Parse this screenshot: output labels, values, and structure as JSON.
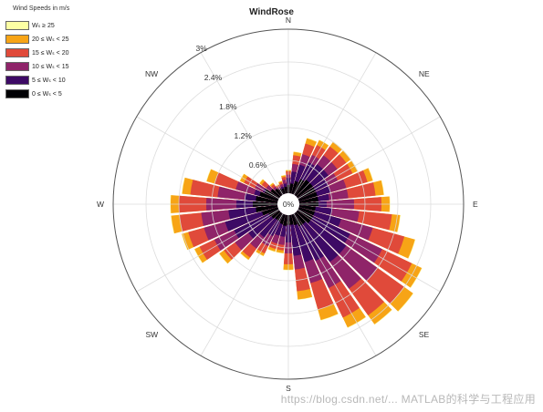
{
  "legend_title": "Wind Speeds in m/s",
  "legend": [
    {
      "label": "Wₛ ≥ 25",
      "color": "#fcffa4"
    },
    {
      "label": "20 ≤ Wₛ < 25",
      "color": "#f7a416"
    },
    {
      "label": "15 ≤ Wₛ < 20",
      "color": "#e04a3a"
    },
    {
      "label": "10 ≤ Wₛ < 15",
      "color": "#8f2469"
    },
    {
      "label": "5 ≤ Wₛ < 10",
      "color": "#3d0a65"
    },
    {
      "label": "0 ≤ Wₛ < 5",
      "color": "#000004"
    }
  ],
  "watermark": "https://blog.csdn.net/... MATLAB的科学与工程应用",
  "chart_data": {
    "type": "windrose",
    "title": "WindRose",
    "directions": [
      "N",
      "NE",
      "E",
      "SE",
      "S",
      "SW",
      "W",
      "NW"
    ],
    "radial_ticks": [
      "0%",
      "0.6%",
      "1.2%",
      "1.8%",
      "2.4%",
      "3%"
    ],
    "radial_max": 3,
    "bins": [
      "0 ≤ Wₛ < 5",
      "5 ≤ Wₛ < 10",
      "10 ≤ Wₛ < 15",
      "15 ≤ Wₛ < 20",
      "20 ≤ Wₛ < 25",
      "Wₛ ≥ 25"
    ],
    "sector_angles": [
      0,
      10,
      20,
      30,
      40,
      50,
      60,
      70,
      80,
      90,
      100,
      110,
      120,
      130,
      140,
      150,
      160,
      170,
      180,
      190,
      200,
      210,
      220,
      230,
      240,
      250,
      260,
      270,
      280,
      290,
      300,
      310,
      320,
      330,
      340,
      350
    ],
    "stacked_percent": [
      [
        0.15,
        0.18,
        0.24,
        0.31,
        0.35,
        0.35,
        0.35,
        0.35,
        0.35,
        0.35,
        0.3,
        0.3,
        0.3,
        0.3,
        0.25,
        0.25,
        0.2,
        0.18,
        0.18,
        0.2,
        0.18,
        0.15,
        0.15,
        0.18,
        0.2,
        0.3,
        0.4,
        0.45,
        0.4,
        0.35,
        0.28,
        0.2,
        0.15,
        0.12,
        0.1,
        0.12
      ],
      [
        0.28,
        0.4,
        0.55,
        0.65,
        0.7,
        0.7,
        0.6,
        0.6,
        0.55,
        0.5,
        0.6,
        0.8,
        1.05,
        1.1,
        1.1,
        0.95,
        0.9,
        0.75,
        0.5,
        0.4,
        0.4,
        0.45,
        0.55,
        0.7,
        0.9,
        1.0,
        0.9,
        0.75,
        0.6,
        0.45,
        0.32,
        0.2,
        0.15,
        0.12,
        0.14,
        0.18
      ],
      [
        0.34,
        0.54,
        0.75,
        0.8,
        0.9,
        0.9,
        0.8,
        0.9,
        0.9,
        1.0,
        1.1,
        1.4,
        1.7,
        1.8,
        1.7,
        1.5,
        1.3,
        1.0,
        0.7,
        0.55,
        0.55,
        0.65,
        0.8,
        1.0,
        1.3,
        1.4,
        1.4,
        1.3,
        1.1,
        0.8,
        0.48,
        0.3,
        0.2,
        0.16,
        0.18,
        0.25
      ],
      [
        0.4,
        0.7,
        0.95,
        1.0,
        1.1,
        1.1,
        1.1,
        1.3,
        1.4,
        1.5,
        1.7,
        2.0,
        2.3,
        2.4,
        2.3,
        2.1,
        1.8,
        1.4,
        0.9,
        0.65,
        0.65,
        0.8,
        1.0,
        1.25,
        1.6,
        1.7,
        1.8,
        1.8,
        1.6,
        1.2,
        0.7,
        0.4,
        0.25,
        0.19,
        0.22,
        0.3
      ],
      [
        0.42,
        0.76,
        1.05,
        1.1,
        1.2,
        1.2,
        1.2,
        1.4,
        1.55,
        1.65,
        1.85,
        2.2,
        2.5,
        2.6,
        2.5,
        2.3,
        2.0,
        1.55,
        1.0,
        0.7,
        0.7,
        0.85,
        1.05,
        1.35,
        1.7,
        1.82,
        1.95,
        1.95,
        1.75,
        1.35,
        0.78,
        0.45,
        0.28,
        0.2,
        0.24,
        0.33
      ],
      [
        0.43,
        0.77,
        1.06,
        1.11,
        1.21,
        1.21,
        1.21,
        1.41,
        1.56,
        1.66,
        1.86,
        2.21,
        2.51,
        2.61,
        2.51,
        2.31,
        2.01,
        1.56,
        1.01,
        0.71,
        0.71,
        0.86,
        1.06,
        1.36,
        1.71,
        1.83,
        1.96,
        1.96,
        1.76,
        1.36,
        0.79,
        0.46,
        0.29,
        0.21,
        0.25,
        0.34
      ]
    ]
  }
}
